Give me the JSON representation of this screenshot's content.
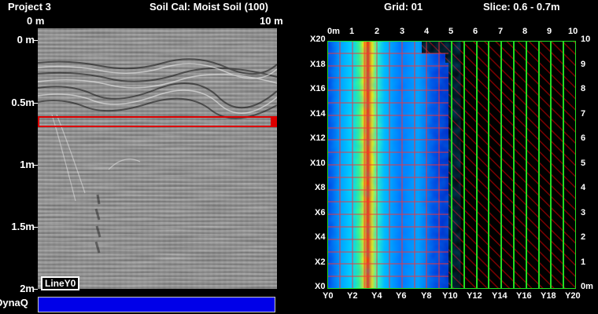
{
  "header": {
    "project": "Project 3",
    "soil_cal": "Soil Cal: Moist Soil (100)",
    "grid": "Grid: 01",
    "slice": "Slice: 0.6 - 0.7m"
  },
  "radargram": {
    "x_start": "0 m",
    "x_end": "10 m",
    "depth_labels": [
      "0 m",
      "0.5m",
      "1m",
      "1.5m",
      "2m"
    ],
    "line_label": "LineY0",
    "dynaq_label": "DynaQ"
  },
  "slice_map": {
    "top_labels": [
      "0m",
      "1",
      "2",
      "3",
      "4",
      "5",
      "6",
      "7",
      "8",
      "9",
      "10"
    ],
    "bottom_labels": [
      "Y0",
      "Y2",
      "Y4",
      "Y6",
      "Y8",
      "Y10",
      "Y12",
      "Y14",
      "Y16",
      "Y18",
      "Y20"
    ],
    "left_labels": [
      "X20",
      "X18",
      "X16",
      "X14",
      "X12",
      "X10",
      "X8",
      "X6",
      "X4",
      "X2",
      "X0"
    ],
    "right_labels": [
      "10",
      "9",
      "8",
      "7",
      "6",
      "5",
      "4",
      "3",
      "2",
      "1",
      "0m"
    ]
  },
  "colors": {
    "selection": "#dd0000",
    "grid_lines": "#ff3030",
    "collected_lines": "#22dd22",
    "dynaq_bar": "#0000e8"
  }
}
